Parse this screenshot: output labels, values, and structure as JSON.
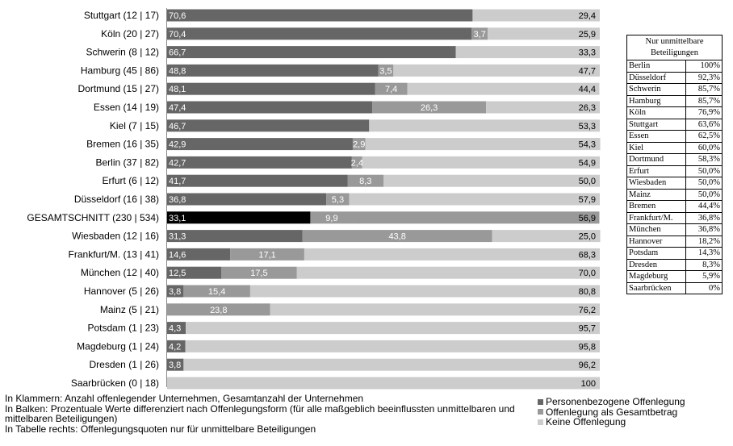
{
  "chart_data": {
    "type": "bar",
    "orientation": "horizontal",
    "stacked": true,
    "xlim": [
      0,
      100
    ],
    "grid": false,
    "legend_position": "bottom-right",
    "categories": [
      "Stuttgart (12 | 17)",
      "Köln (20 | 27)",
      "Schwerin (8 | 12)",
      "Hamburg (45 | 86)",
      "Dortmund (15 | 27)",
      "Essen (14 | 19)",
      "Kiel (7 | 15)",
      "Bremen (16 | 35)",
      "Berlin  (37 | 82)",
      "Erfurt (6 | 12)",
      "Düsseldorf (16 | 38)",
      "GESAMTSCHNITT (230 | 534)",
      "Wiesbaden (12 | 16)",
      "Frankfurt/M. (13 | 41)",
      "München (12 | 40)",
      "Hannover  (5 | 26)",
      "Mainz (5 | 21)",
      "Potsdam (1 | 23)",
      "Magdeburg (1 | 24)",
      "Dresden (1 | 26)",
      "Saarbrücken (0 | 18)"
    ],
    "highlight_index": 11,
    "series": [
      {
        "name": "Personenbezogene Offenlegung",
        "color": "#666666",
        "highlight_color": "#000000",
        "values": [
          70.6,
          70.4,
          66.7,
          48.8,
          48.1,
          47.4,
          46.7,
          42.9,
          42.7,
          41.7,
          36.8,
          33.1,
          31.3,
          14.6,
          12.5,
          3.8,
          0,
          4.3,
          4.2,
          3.8,
          0
        ],
        "labels": [
          "70,6",
          "70,4",
          "66,7",
          "48,8",
          "48,1",
          "47,4",
          "46,7",
          "42,9",
          "42,7",
          "41,7",
          "36,8",
          "33,1",
          "31,3",
          "14,6",
          "12,5",
          "3,8",
          "",
          "4,3",
          "4,2",
          "3,8",
          ""
        ]
      },
      {
        "name": "Offenlegung als Gesamtbetrag",
        "color": "#999999",
        "highlight_color": "#999999",
        "values": [
          0,
          3.7,
          0,
          3.5,
          7.4,
          26.3,
          0,
          2.9,
          2.4,
          8.3,
          5.3,
          9.9,
          43.8,
          17.1,
          17.5,
          15.4,
          23.8,
          0,
          0,
          0,
          0
        ],
        "labels": [
          "",
          "3,7",
          "",
          "3,5",
          "7,4",
          "26,3",
          "",
          "2,9",
          "2,4",
          "8,3",
          "5,3",
          "9,9",
          "43,8",
          "17,1",
          "17,5",
          "15,4",
          "23,8",
          "",
          "",
          "",
          ""
        ]
      },
      {
        "name": "Keine Offenlegung",
        "color": "#cccccc",
        "highlight_color": "#999999",
        "values": [
          29.4,
          25.9,
          33.3,
          47.7,
          44.4,
          26.3,
          53.3,
          54.3,
          54.9,
          50.0,
          57.9,
          56.9,
          25.0,
          68.3,
          70.0,
          80.8,
          76.2,
          95.7,
          95.8,
          96.2,
          100
        ],
        "labels": [
          "29,4",
          "25,9",
          "33,3",
          "47,7",
          "44,4",
          "26,3",
          "53,3",
          "54,3",
          "54,9",
          "50,0",
          "57,9",
          "56,9",
          "25,0",
          "68,3",
          "70,0",
          "80,8",
          "76,2",
          "95,7",
          "95,8",
          "96,2",
          "100"
        ]
      }
    ]
  },
  "table": {
    "header": "Nur unmittelbare Beteiligungen",
    "rows": [
      {
        "city": "Berlin",
        "value": "100%"
      },
      {
        "city": "Düsseldorf",
        "value": "92,3%"
      },
      {
        "city": "Schwerin",
        "value": "85,7%"
      },
      {
        "city": "Hamburg",
        "value": "85,7%"
      },
      {
        "city": "Köln",
        "value": "76,9%"
      },
      {
        "city": "Stuttgart",
        "value": "63,6%"
      },
      {
        "city": "Essen",
        "value": "62,5%"
      },
      {
        "city": "Kiel",
        "value": "60,0%"
      },
      {
        "city": "Dortmund",
        "value": "58,3%"
      },
      {
        "city": "Erfurt",
        "value": "50,0%"
      },
      {
        "city": "Wiesbaden",
        "value": "50,0%"
      },
      {
        "city": "Mainz",
        "value": "50,0%"
      },
      {
        "city": "Bremen",
        "value": "44,4%"
      },
      {
        "city": "Frankfurt/M.",
        "value": "36,8%"
      },
      {
        "city": "München",
        "value": "36,8%"
      },
      {
        "city": "Hannover",
        "value": "18,2%"
      },
      {
        "city": "Potsdam",
        "value": "14,3%"
      },
      {
        "city": "Dresden",
        "value": "8,3%"
      },
      {
        "city": "Magdeburg",
        "value": "5,9%"
      },
      {
        "city": "Saarbrücken",
        "value": "0%"
      }
    ]
  },
  "notes": {
    "line1": "In Klammern: Anzahl offenlegender Unternehmen, Gesamtanzahl der Unternehmen",
    "line2": "In Balken: Prozentuale Werte differenziert nach Offenlegungsform (für alle maßgeblich beeinflussten unmittelbaren und mittelbaren Beteiligungen)",
    "line3": "In Tabelle rechts: Offenlegungsquoten nur für unmittelbare Beteiligungen"
  }
}
